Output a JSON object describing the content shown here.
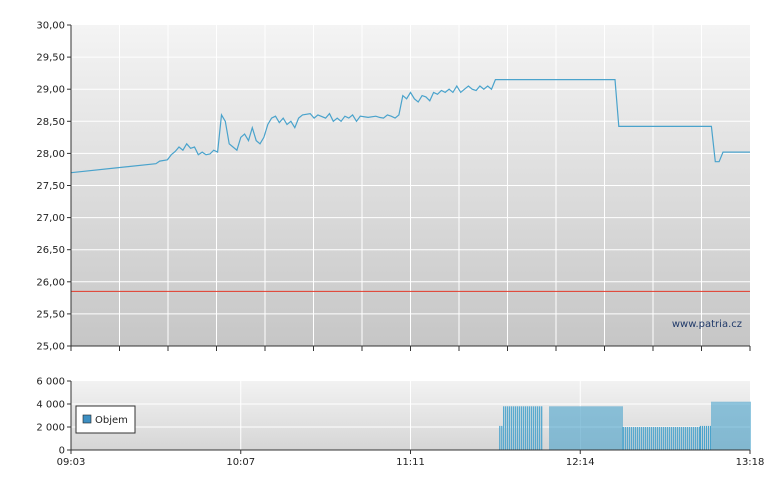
{
  "chart_data": [
    {
      "type": "line",
      "title": "",
      "xlabel": "",
      "ylabel": "",
      "ylim": [
        25.0,
        30.0
      ],
      "y_ticks": [
        "30,00",
        "29,50",
        "29,00",
        "28,50",
        "28,00",
        "27,50",
        "27,00",
        "26,50",
        "26,00",
        "25,50",
        "25,00"
      ],
      "reference_line": 25.85,
      "watermark": "www.patria.cz",
      "grid": true,
      "colors": {
        "line": "#4aa3cc",
        "reference": "#e23a2a",
        "grid": "#ffffff",
        "bg_top": "#f4f4f4",
        "bg_bottom": "#c6c6c6"
      },
      "series": [
        {
          "points": [
            [
              0,
              27.7
            ],
            [
              22,
              27.84
            ],
            [
              23,
              27.88
            ],
            [
              25,
              27.9
            ],
            [
              26,
              27.98
            ],
            [
              27,
              28.03
            ],
            [
              28,
              28.1
            ],
            [
              29,
              28.05
            ],
            [
              30,
              28.15
            ],
            [
              31,
              28.08
            ],
            [
              32,
              28.1
            ],
            [
              33,
              27.98
            ],
            [
              34,
              28.02
            ],
            [
              35,
              27.98
            ],
            [
              36,
              27.99
            ],
            [
              37,
              28.05
            ],
            [
              38,
              28.02
            ],
            [
              39,
              28.6
            ],
            [
              40,
              28.5
            ],
            [
              41,
              28.15
            ],
            [
              42,
              28.1
            ],
            [
              43,
              28.05
            ],
            [
              44,
              28.25
            ],
            [
              45,
              28.3
            ],
            [
              46,
              28.2
            ],
            [
              47,
              28.4
            ],
            [
              48,
              28.2
            ],
            [
              49,
              28.15
            ],
            [
              50,
              28.25
            ],
            [
              51,
              28.45
            ],
            [
              52,
              28.55
            ],
            [
              53,
              28.58
            ],
            [
              54,
              28.48
            ],
            [
              55,
              28.55
            ],
            [
              56,
              28.45
            ],
            [
              57,
              28.5
            ],
            [
              58,
              28.4
            ],
            [
              59,
              28.55
            ],
            [
              60,
              28.6
            ],
            [
              62,
              28.62
            ],
            [
              63,
              28.55
            ],
            [
              64,
              28.6
            ],
            [
              66,
              28.55
            ],
            [
              67,
              28.62
            ],
            [
              68,
              28.5
            ],
            [
              69,
              28.55
            ],
            [
              70,
              28.5
            ],
            [
              71,
              28.58
            ],
            [
              72,
              28.55
            ],
            [
              73,
              28.6
            ],
            [
              74,
              28.5
            ],
            [
              75,
              28.58
            ],
            [
              77,
              28.56
            ],
            [
              79,
              28.58
            ],
            [
              80,
              28.56
            ],
            [
              81,
              28.55
            ],
            [
              82,
              28.6
            ],
            [
              83,
              28.58
            ],
            [
              84,
              28.55
            ],
            [
              85,
              28.6
            ],
            [
              86,
              28.9
            ],
            [
              87,
              28.85
            ],
            [
              88,
              28.95
            ],
            [
              89,
              28.85
            ],
            [
              90,
              28.8
            ],
            [
              91,
              28.9
            ],
            [
              92,
              28.88
            ],
            [
              93,
              28.82
            ],
            [
              94,
              28.95
            ],
            [
              95,
              28.92
            ],
            [
              96,
              28.98
            ],
            [
              97,
              28.95
            ],
            [
              98,
              29.0
            ],
            [
              99,
              28.95
            ],
            [
              100,
              29.05
            ],
            [
              101,
              28.95
            ],
            [
              102,
              29.0
            ],
            [
              103,
              29.05
            ],
            [
              104,
              29.0
            ],
            [
              105,
              28.98
            ],
            [
              106,
              29.05
            ],
            [
              107,
              29.0
            ],
            [
              108,
              29.05
            ],
            [
              109,
              29.0
            ],
            [
              110,
              29.15
            ],
            [
              141,
              29.15
            ],
            [
              142,
              28.42
            ],
            [
              166,
              28.42
            ],
            [
              167,
              27.87
            ],
            [
              168,
              27.87
            ],
            [
              169,
              28.02
            ],
            [
              176,
              28.02
            ]
          ]
        }
      ]
    },
    {
      "type": "bar",
      "title": "",
      "xlabel": "",
      "ylabel": "",
      "ylim": [
        0,
        6000
      ],
      "y_ticks": [
        "6 000",
        "4 000",
        "2 000",
        "0"
      ],
      "x_ticks": [
        "09:03",
        "10:07",
        "11:11",
        "12:14",
        "13:18"
      ],
      "legend": {
        "label": "Objem",
        "placement": "middle-left"
      },
      "colors": {
        "bar": "#4aa3cc",
        "legend_swatch": "#3d8fc2"
      },
      "series": [
        {
          "name": "Objem",
          "segments": [
            {
              "from": 111,
              "to": 112,
              "value": 2100
            },
            {
              "from": 112,
              "to": 122,
              "value": 3800
            },
            {
              "from": 124,
              "to": 143,
              "value": 3800
            },
            {
              "from": 143,
              "to": 163,
              "value": 2000
            },
            {
              "from": 163,
              "to": 166,
              "value": 2100
            },
            {
              "from": 166,
              "to": 176,
              "value": 4200
            }
          ]
        }
      ]
    }
  ]
}
